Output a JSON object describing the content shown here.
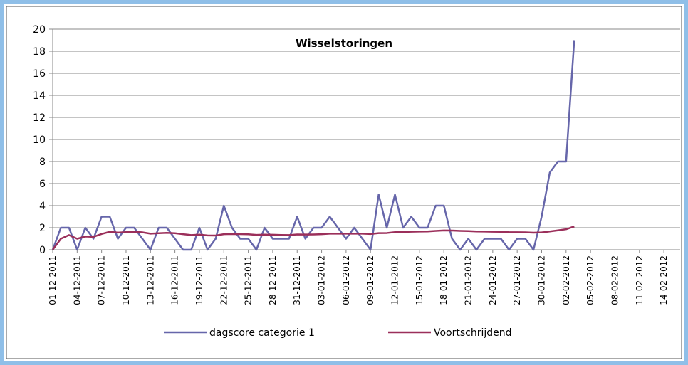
{
  "chart_data": {
    "type": "line",
    "title": "Wisselstoringen",
    "categories": [
      "01-12-2011",
      null,
      null,
      "04-12-2011",
      null,
      null,
      "07-12-2011",
      null,
      null,
      "10-12-2011",
      null,
      null,
      "13-12-2011",
      null,
      null,
      "16-12-2011",
      null,
      null,
      "19-12-2011",
      null,
      null,
      "22-12-2011",
      null,
      null,
      "25-12-2011",
      null,
      null,
      "28-12-2011",
      null,
      null,
      "31-12-2011",
      null,
      null,
      "03-01-2012",
      null,
      null,
      "06-01-2012",
      null,
      null,
      "09-01-2012",
      null,
      null,
      "12-01-2012",
      null,
      null,
      "15-01-2012",
      null,
      null,
      "18-01-2012",
      null,
      null,
      "21-01-2012",
      null,
      null,
      "24-01-2012",
      null,
      null,
      "27-01-2012",
      null,
      null,
      "30-01-2012",
      null,
      null,
      "02-02-2012",
      null,
      null,
      "05-02-2012",
      null,
      null,
      "08-02-2012",
      null,
      null,
      "11-02-2012",
      null,
      null,
      "14-02-2012",
      null,
      null
    ],
    "series": [
      {
        "name": "dagscore categorie 1",
        "color": "#6666aa",
        "values": [
          0,
          2,
          2,
          0,
          2,
          1,
          3,
          3,
          1,
          2,
          2,
          1,
          0,
          2,
          2,
          1,
          0,
          0,
          2,
          0,
          1,
          4,
          2,
          1,
          1,
          0,
          2,
          1,
          1,
          1,
          3,
          1,
          2,
          2,
          3,
          2,
          1,
          2,
          1,
          0,
          5,
          2,
          5,
          2,
          3,
          2,
          2,
          4,
          4,
          1,
          0,
          1,
          0,
          1,
          1,
          1,
          0,
          1,
          1,
          0,
          3,
          7,
          8,
          8,
          19,
          null,
          null,
          null,
          null,
          null,
          null,
          null,
          null,
          null,
          null,
          null,
          null,
          null
        ]
      },
      {
        "name": "Voortschrijdend",
        "color": "#9b2f5a",
        "values": [
          0,
          1,
          1.33,
          1,
          1.2,
          1.17,
          1.43,
          1.63,
          1.56,
          1.6,
          1.64,
          1.58,
          1.46,
          1.5,
          1.53,
          1.5,
          1.41,
          1.33,
          1.37,
          1.3,
          1.29,
          1.41,
          1.43,
          1.42,
          1.4,
          1.35,
          1.37,
          1.36,
          1.34,
          1.33,
          1.39,
          1.38,
          1.39,
          1.41,
          1.46,
          1.47,
          1.46,
          1.47,
          1.46,
          1.43,
          1.51,
          1.52,
          1.6,
          1.61,
          1.64,
          1.65,
          1.66,
          1.71,
          1.75,
          1.74,
          1.71,
          1.69,
          1.66,
          1.65,
          1.64,
          1.63,
          1.6,
          1.59,
          1.58,
          1.55,
          1.57,
          1.66,
          1.76,
          1.86,
          2.12,
          null,
          null,
          null,
          null,
          null,
          null,
          null,
          null,
          null,
          null,
          null,
          null,
          null
        ]
      }
    ],
    "ylim": [
      0,
      20
    ],
    "yticks": [
      0,
      2,
      4,
      6,
      8,
      10,
      12,
      14,
      16,
      18,
      20
    ],
    "grid": true,
    "legend": "bottom"
  }
}
